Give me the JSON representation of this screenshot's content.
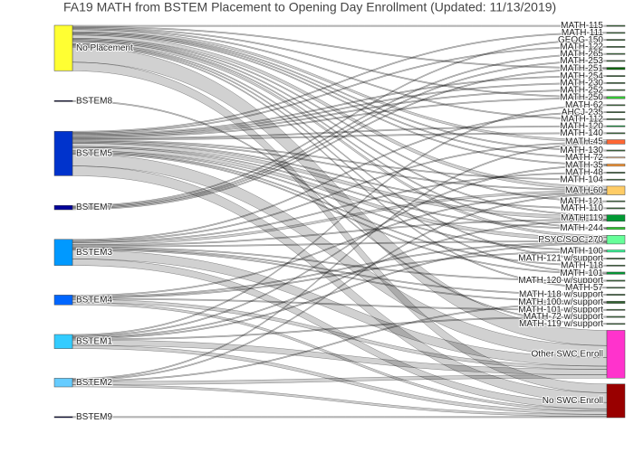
{
  "chart_data": {
    "type": "sankey",
    "title": "FA19 MATH from BSTEM Placement to Opening Day Enrollment (Updated: 11/13/2019)",
    "nodes": [
      {
        "label": "No Placement",
        "color": "#ffff33"
      },
      {
        "label": "BSTEM8",
        "color": "#000033"
      },
      {
        "label": "BSTEM5",
        "color": "#0033cc"
      },
      {
        "label": "BSTEM7",
        "color": "#000099"
      },
      {
        "label": "BSTEM3",
        "color": "#0099ff"
      },
      {
        "label": "BSTEM4",
        "color": "#0066ff"
      },
      {
        "label": "BSTEM1",
        "color": "#33ccff"
      },
      {
        "label": "BSTEM2",
        "color": "#66ccff"
      },
      {
        "label": "BSTEM9",
        "color": "#000033"
      },
      {
        "label": "MATH-115",
        "color": "#336633"
      },
      {
        "label": "MATH-111",
        "color": "#336633"
      },
      {
        "label": "GEOG-150",
        "color": "#336633"
      },
      {
        "label": "MATH-122",
        "color": "#336633"
      },
      {
        "label": "MATH-265",
        "color": "#336633"
      },
      {
        "label": "MATH-253",
        "color": "#336633"
      },
      {
        "label": "MATH-251",
        "color": "#006600"
      },
      {
        "label": "MATH-254",
        "color": "#336633"
      },
      {
        "label": "MATH-230",
        "color": "#336633"
      },
      {
        "label": "MATH-252",
        "color": "#336633"
      },
      {
        "label": "MATH-250",
        "color": "#33cc33"
      },
      {
        "label": "MATH-62",
        "color": "#336633"
      },
      {
        "label": "AHCJ-235",
        "color": "#336633"
      },
      {
        "label": "MATH-112",
        "color": "#336633"
      },
      {
        "label": "MATH-120",
        "color": "#009933"
      },
      {
        "label": "MATH-140",
        "color": "#336633"
      },
      {
        "label": "MATH-45",
        "color": "#ff6633"
      },
      {
        "label": "MATH-130",
        "color": "#336633"
      },
      {
        "label": "MATH-72",
        "color": "#ffcc99"
      },
      {
        "label": "MATH-35",
        "color": "#ff9933"
      },
      {
        "label": "MATH-48",
        "color": "#336633"
      },
      {
        "label": "MATH-104",
        "color": "#336633"
      },
      {
        "label": "MATH-60",
        "color": "#ffcc66"
      },
      {
        "label": "MATH-121",
        "color": "#336633"
      },
      {
        "label": "MATH-110",
        "color": "#336633"
      },
      {
        "label": "MATH-119",
        "color": "#009933"
      },
      {
        "label": "MATH-244",
        "color": "#33cc33"
      },
      {
        "label": "PSYC/SOC-270",
        "color": "#66ff99"
      },
      {
        "label": "MATH-100",
        "color": "#33ff99"
      },
      {
        "label": "MATH-121 w/support",
        "color": "#336633"
      },
      {
        "label": "MATH-118",
        "color": "#336633"
      },
      {
        "label": "MATH-101",
        "color": "#009933"
      },
      {
        "label": "MATH-120 w/support",
        "color": "#336633"
      },
      {
        "label": "MATH-57",
        "color": "#336633"
      },
      {
        "label": "MATH-118 w/support",
        "color": "#336633"
      },
      {
        "label": "MATH-100 w/support",
        "color": "#336633"
      },
      {
        "label": "MATH-101 w/support",
        "color": "#336633"
      },
      {
        "label": "MATH-72 w/support",
        "color": "#336633"
      },
      {
        "label": "MATH-119 w/support",
        "color": "#336633"
      },
      {
        "label": "Other SWC Enroll",
        "color": "#ff33cc"
      },
      {
        "label": "No SWC Enroll",
        "color": "#990000"
      }
    ],
    "links": {
      "source": [
        0,
        0,
        0,
        0,
        0,
        0,
        0,
        0,
        0,
        0,
        0,
        0,
        0,
        0,
        0,
        0,
        0,
        0,
        1,
        2,
        2,
        2,
        2,
        2,
        2,
        2,
        2,
        2,
        2,
        2,
        2,
        2,
        2,
        2,
        2,
        2,
        2,
        2,
        3,
        3,
        3,
        3,
        4,
        4,
        4,
        4,
        4,
        4,
        4,
        4,
        4,
        4,
        4,
        5,
        5,
        5,
        5,
        5,
        5,
        6,
        6,
        6,
        6,
        6,
        6,
        6,
        7,
        7,
        7,
        7,
        7,
        8
      ],
      "target": [
        48,
        49,
        31,
        25,
        36,
        34,
        19,
        27,
        28,
        9,
        22,
        35,
        40,
        26,
        38,
        15,
        32,
        42,
        47,
        48,
        49,
        34,
        36,
        19,
        23,
        37,
        40,
        35,
        31,
        30,
        33,
        10,
        16,
        17,
        18,
        24,
        39,
        12,
        15,
        13,
        14,
        11,
        48,
        49,
        31,
        34,
        36,
        25,
        29,
        41,
        43,
        21,
        44,
        48,
        49,
        31,
        36,
        37,
        45,
        48,
        49,
        34,
        36,
        20,
        28,
        46,
        48,
        49,
        31,
        25,
        44,
        49
      ],
      "value": [
        14,
        8,
        3,
        2,
        2,
        1,
        1,
        1,
        1,
        1,
        1,
        1,
        1,
        1,
        1,
        1,
        1,
        1,
        1,
        11,
        9,
        3,
        3,
        1,
        1,
        1,
        1,
        1,
        1,
        1,
        1,
        1,
        1,
        1,
        1,
        1,
        1,
        1,
        1,
        1,
        1,
        1,
        8,
        6,
        2,
        1,
        1,
        1,
        1,
        1,
        1,
        1,
        1,
        3,
        2,
        1,
        1,
        1,
        1,
        5,
        3,
        1,
        1,
        1,
        1,
        1,
        3,
        2,
        1,
        1,
        1,
        1
      ]
    }
  }
}
